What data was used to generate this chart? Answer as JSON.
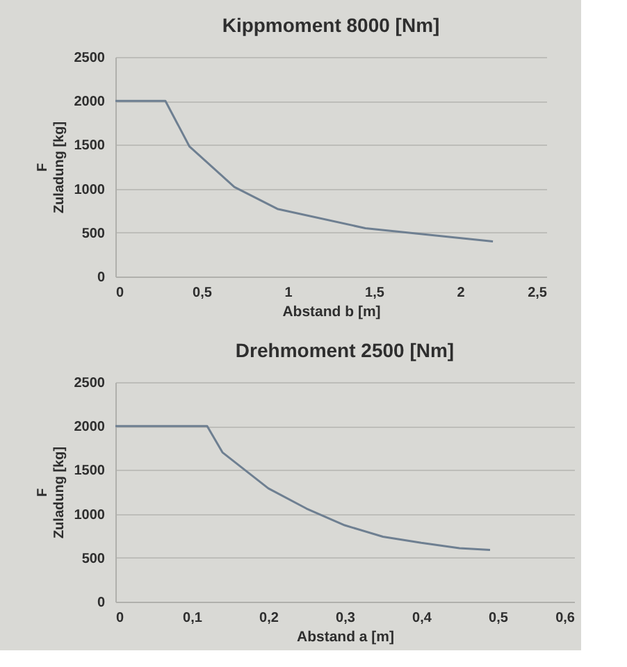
{
  "chart_data": [
    {
      "type": "line",
      "title": "Kippmoment 8000 [Nm]",
      "xlabel": "Abstand b [m]",
      "ylabel": "F\nZuladung [kg]",
      "x": [
        0,
        0.29,
        0.43,
        0.69,
        0.94,
        1.45,
        2.19
      ],
      "values": [
        2000,
        2000,
        1480,
        1020,
        770,
        550,
        400
      ],
      "color": "#6e7f91",
      "xlim": [
        0,
        2.5
      ],
      "xticks": [
        0,
        {
          "value": 0.5,
          "label": "0,5"
        },
        1,
        {
          "value": 1.5,
          "label": "1,5"
        },
        2,
        {
          "value": 2.5,
          "label": "2,5"
        }
      ],
      "ylim": [
        0,
        2500
      ],
      "yticks": [
        0,
        500,
        1000,
        1500,
        2000,
        2500
      ],
      "grid": "y"
    },
    {
      "type": "line",
      "title": "Drehmoment 2500 [Nm]",
      "xlabel": "Abstand a [m]",
      "ylabel": "F\nZuladung [kg]",
      "x": [
        0,
        0.12,
        0.14,
        0.2,
        0.25,
        0.3,
        0.35,
        0.4,
        0.45,
        0.49
      ],
      "values": [
        2000,
        2000,
        1700,
        1290,
        1060,
        870,
        740,
        670,
        610,
        590
      ],
      "color": "#6e7f91",
      "xlim": [
        0,
        0.6
      ],
      "xticks": [
        0,
        {
          "value": 0.1,
          "label": "0,1"
        },
        {
          "value": 0.2,
          "label": "0,2"
        },
        {
          "value": 0.3,
          "label": "0,3"
        },
        {
          "value": 0.4,
          "label": "0,4"
        },
        {
          "value": 0.5,
          "label": "0,5"
        },
        {
          "value": 0.6,
          "label": "0,6"
        }
      ],
      "ylim": [
        0,
        2500
      ],
      "yticks": [
        0,
        500,
        1000,
        1500,
        2000,
        2500
      ],
      "grid": "y"
    }
  ]
}
